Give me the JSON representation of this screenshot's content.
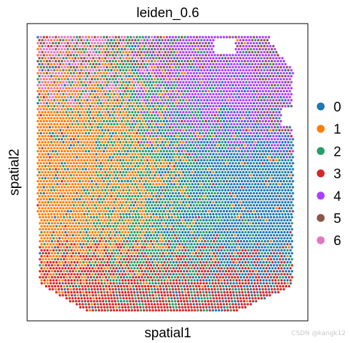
{
  "chart_data": {
    "type": "scatter",
    "title": "leiden_0.6",
    "xlabel": "spatial1",
    "ylabel": "spatial2",
    "grid": false,
    "legend_placement": "right",
    "clusters": [
      {
        "name": "0",
        "color": "#1f77b4"
      },
      {
        "name": "1",
        "color": "#ff7f0e"
      },
      {
        "name": "2",
        "color": "#279e68"
      },
      {
        "name": "3",
        "color": "#d62728"
      },
      {
        "name": "4",
        "color": "#aa40fc"
      },
      {
        "name": "5",
        "color": "#8c564b"
      },
      {
        "name": "6",
        "color": "#e377c2"
      }
    ]
  },
  "watermark": "CSDN @kangk12"
}
